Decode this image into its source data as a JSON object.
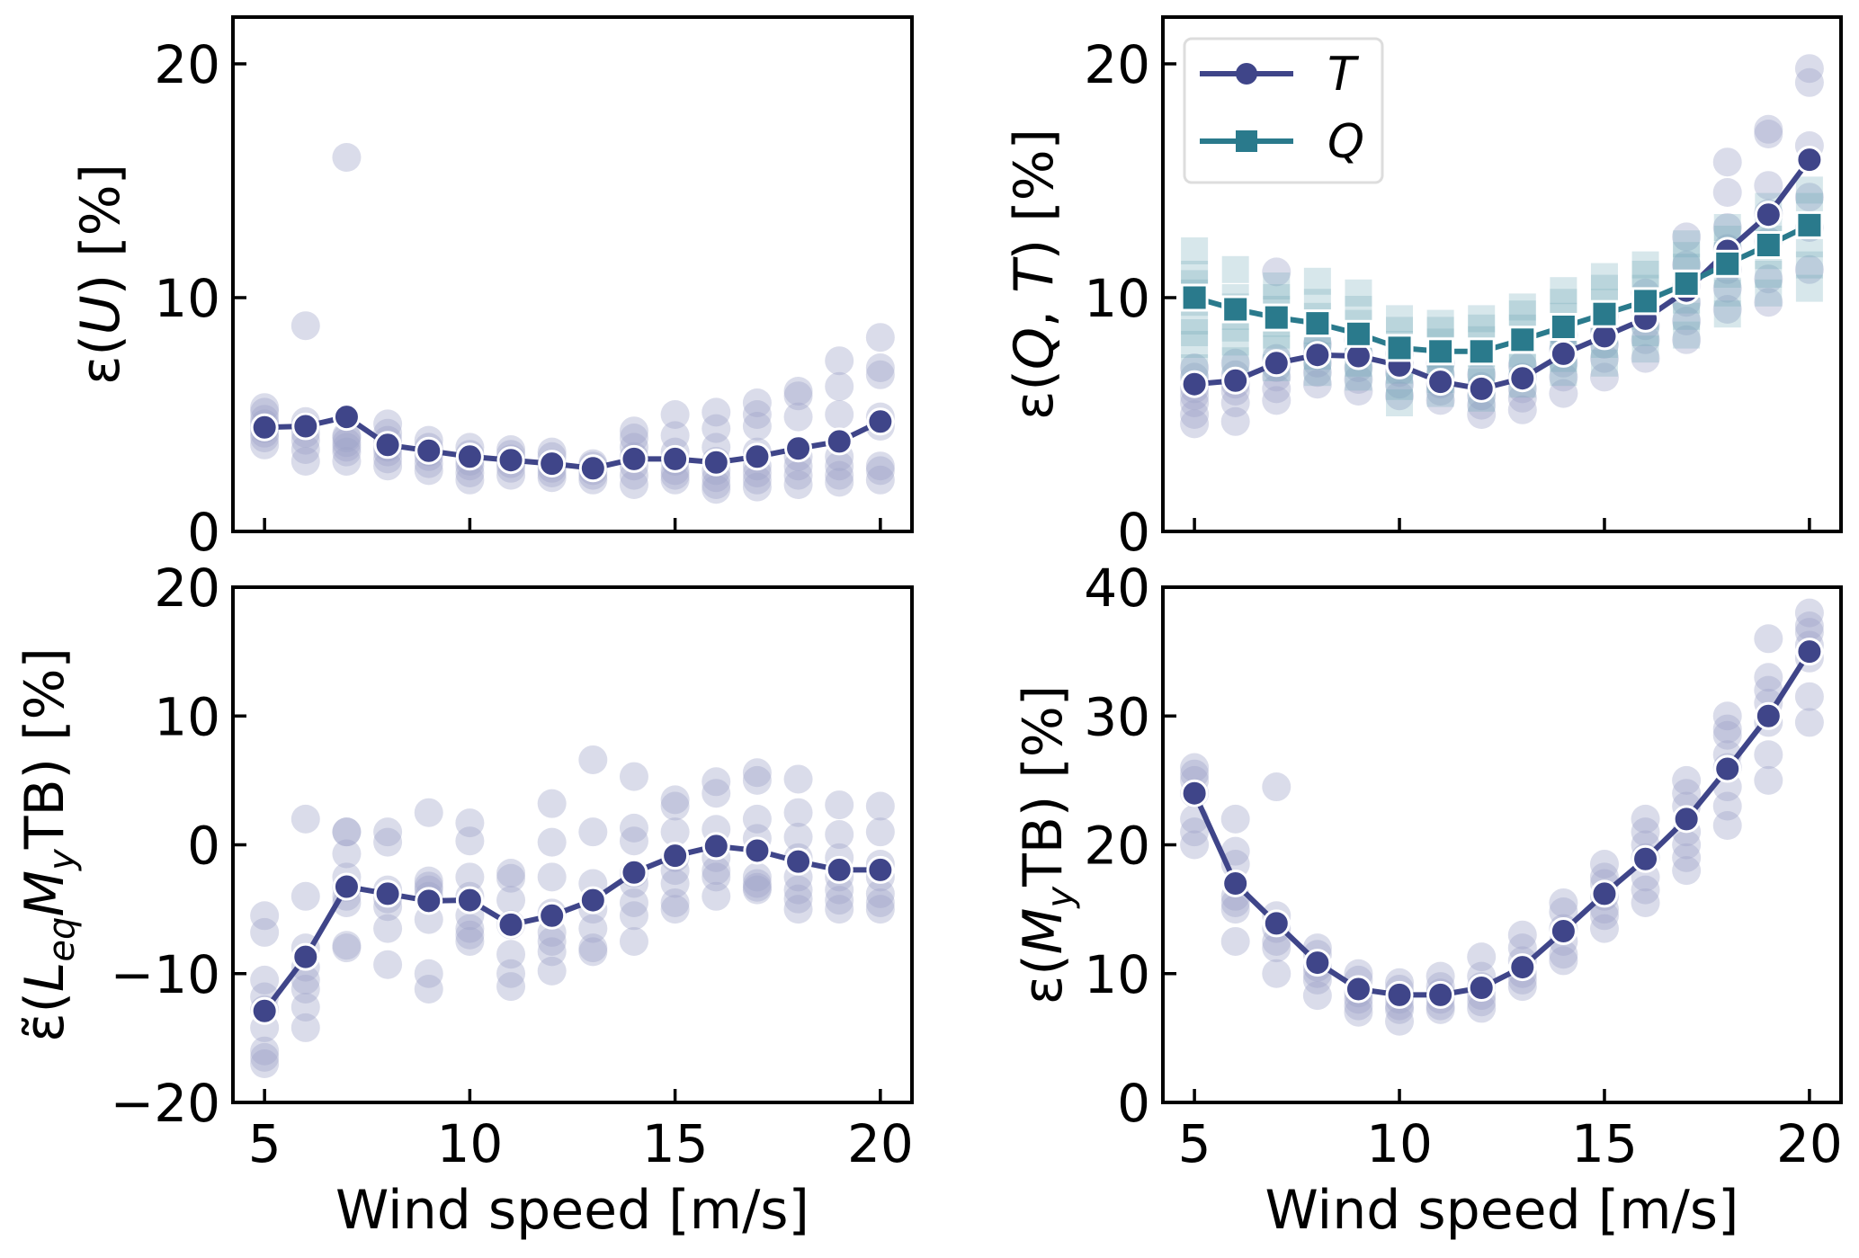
{
  "figure": {
    "colors": {
      "T": "#3f4589",
      "T_scatter": "#9fa3c9",
      "Q": "#2a7a8c",
      "Q_scatter": "#6fa9b6",
      "legend_border": "#dddddd"
    }
  },
  "chart_data": [
    {
      "id": "top-left",
      "type": "line",
      "ylabel": "ε(U) [%]",
      "ylabel_parts": [
        {
          "t": "ε(",
          "s": "normal"
        },
        {
          "t": "U",
          "s": "italic"
        },
        {
          "t": ") [%]",
          "s": "normal"
        }
      ],
      "xlabel": "",
      "xlim": [
        4.23,
        20.77
      ],
      "ylim": [
        0,
        22
      ],
      "xticks": [
        5,
        10,
        15,
        20
      ],
      "xtick_labels_visible": false,
      "yticks": [
        0,
        10,
        20
      ],
      "ytick_labels": [
        "0",
        "10",
        "20"
      ],
      "x": [
        5,
        6,
        7,
        8,
        9,
        10,
        11,
        12,
        13,
        14,
        15,
        16,
        17,
        18,
        19,
        20
      ],
      "series": [
        {
          "name": "U",
          "marker": "circle",
          "color_key": "T",
          "values": [
            4.45,
            4.5,
            4.9,
            3.7,
            3.45,
            3.2,
            3.05,
            2.9,
            2.7,
            3.1,
            3.1,
            2.95,
            3.2,
            3.55,
            3.85,
            4.7
          ],
          "scatter": [
            [
              3.7,
              4.0,
              4.2,
              4.4,
              4.6,
              4.8,
              5.1,
              5.3
            ],
            [
              3.0,
              3.5,
              3.9,
              4.2,
              4.5,
              4.7,
              8.8
            ],
            [
              3.0,
              3.4,
              3.6,
              3.8,
              4.0,
              4.1,
              16.0
            ],
            [
              2.8,
              3.1,
              3.4,
              3.6,
              3.9,
              4.2,
              4.6
            ],
            [
              2.6,
              2.9,
              3.2,
              3.4,
              3.6,
              3.9
            ],
            [
              2.2,
              2.5,
              2.8,
              3.0,
              3.3,
              3.6
            ],
            [
              2.4,
              2.7,
              2.9,
              3.1,
              3.3,
              3.5
            ],
            [
              2.3,
              2.5,
              2.7,
              2.9,
              3.2,
              3.4
            ],
            [
              2.2,
              2.4,
              2.6,
              2.8,
              2.9
            ],
            [
              2.0,
              2.4,
              2.8,
              3.2,
              3.6,
              4.0,
              4.3
            ],
            [
              2.2,
              2.4,
              2.6,
              3.0,
              3.4,
              4.1,
              5.0
            ],
            [
              1.8,
              2.0,
              2.3,
              2.6,
              3.0,
              3.6,
              4.4,
              5.1
            ],
            [
              1.9,
              2.2,
              2.5,
              2.8,
              3.4,
              4.5,
              5.0,
              5.5
            ],
            [
              2.0,
              2.4,
              2.8,
              3.2,
              4.9,
              5.8,
              6.0
            ],
            [
              2.1,
              2.4,
              2.8,
              3.2,
              5.0,
              6.2,
              7.3
            ],
            [
              2.2,
              2.6,
              2.8,
              4.5,
              4.9,
              6.7,
              7.0,
              8.3
            ]
          ]
        }
      ]
    },
    {
      "id": "top-right",
      "type": "line",
      "ylabel": "ε(Q, T) [%]",
      "ylabel_parts": [
        {
          "t": "ε(",
          "s": "normal"
        },
        {
          "t": "Q",
          "s": "italic"
        },
        {
          "t": ",  ",
          "s": "normal"
        },
        {
          "t": "T",
          "s": "italic"
        },
        {
          "t": ") [%]",
          "s": "normal"
        }
      ],
      "xlabel": "",
      "xlim": [
        4.23,
        20.77
      ],
      "ylim": [
        0,
        22
      ],
      "xticks": [
        5,
        10,
        15,
        20
      ],
      "xtick_labels_visible": false,
      "yticks": [
        0,
        10,
        20
      ],
      "ytick_labels": [
        "0",
        "10",
        "20"
      ],
      "legend": {
        "position": "top-left",
        "entries": [
          {
            "label": "T",
            "marker": "circle",
            "color_key": "T"
          },
          {
            "label": "Q",
            "marker": "square",
            "color_key": "Q"
          }
        ]
      },
      "x": [
        5,
        6,
        7,
        8,
        9,
        10,
        11,
        12,
        13,
        14,
        15,
        16,
        17,
        18,
        19,
        20
      ],
      "series": [
        {
          "name": "T",
          "marker": "circle",
          "color_key": "T",
          "values": [
            6.3,
            6.45,
            7.2,
            7.55,
            7.5,
            7.1,
            6.4,
            6.1,
            6.55,
            7.6,
            8.35,
            9.1,
            10.3,
            12.0,
            13.55,
            15.9
          ],
          "scatter": [
            [
              4.6,
              5.0,
              5.5,
              5.8,
              6.1,
              6.6,
              7.0
            ],
            [
              4.7,
              5.5,
              6.0,
              6.3,
              6.7,
              7.2
            ],
            [
              5.6,
              6.1,
              6.6,
              7.0,
              7.4,
              11.1
            ],
            [
              6.3,
              6.8,
              7.2,
              7.6,
              8.0
            ],
            [
              6.0,
              6.5,
              7.0,
              7.6,
              8.2
            ],
            [
              5.8,
              6.3,
              6.8,
              7.2,
              7.6
            ],
            [
              5.6,
              6.0,
              6.3,
              6.7,
              7.2
            ],
            [
              5.0,
              5.4,
              5.8,
              6.2,
              6.7
            ],
            [
              5.2,
              5.7,
              6.1,
              6.6,
              7.1
            ],
            [
              5.9,
              6.6,
              7.2,
              7.8,
              8.4
            ],
            [
              6.6,
              7.4,
              8.0,
              8.6,
              9.2
            ],
            [
              7.4,
              8.2,
              8.8,
              9.4,
              10.2
            ],
            [
              8.2,
              9.0,
              9.8,
              10.5,
              11.4,
              12.6
            ],
            [
              9.5,
              10.4,
              11.2,
              12.1,
              13.0,
              14.5,
              15.8
            ],
            [
              9.8,
              10.8,
              12.4,
              13.6,
              14.8,
              17.0,
              17.2
            ],
            [
              11.2,
              13.0,
              14.3,
              16.5,
              19.2,
              19.8
            ]
          ]
        },
        {
          "name": "Q",
          "marker": "square",
          "color_key": "Q",
          "values": [
            10.0,
            9.5,
            9.15,
            8.9,
            8.45,
            7.85,
            7.7,
            7.7,
            8.2,
            8.75,
            9.3,
            9.85,
            10.6,
            11.45,
            12.25,
            13.1
          ],
          "scatter": [
            [
              7.0,
              8.0,
              8.5,
              9.0,
              9.8,
              10.2,
              10.6,
              11.0,
              12.0
            ],
            [
              7.3,
              8.1,
              8.7,
              9.2,
              9.6,
              10.0,
              11.2
            ],
            [
              7.0,
              7.8,
              8.4,
              8.9,
              9.5,
              10.0,
              10.5
            ],
            [
              6.8,
              7.5,
              8.1,
              8.6,
              9.2,
              9.8,
              10.7
            ],
            [
              6.6,
              7.2,
              7.8,
              8.3,
              8.9,
              9.5,
              10.2
            ],
            [
              5.5,
              6.2,
              6.9,
              7.5,
              8.0,
              8.6,
              9.1
            ],
            [
              5.9,
              6.5,
              7.0,
              7.6,
              8.1,
              8.6,
              8.9
            ],
            [
              5.7,
              6.4,
              7.0,
              7.6,
              8.2,
              8.7,
              9.1
            ],
            [
              6.3,
              7.0,
              7.6,
              8.2,
              8.7,
              9.3,
              9.6
            ],
            [
              6.8,
              7.4,
              8.0,
              8.6,
              9.2,
              9.8,
              10.3
            ],
            [
              7.2,
              8.0,
              8.6,
              9.2,
              9.8,
              10.4,
              10.9
            ],
            [
              7.8,
              8.5,
              9.2,
              9.8,
              10.4,
              11.0,
              11.4
            ],
            [
              8.4,
              9.2,
              9.9,
              10.6,
              11.3,
              11.8,
              12.3
            ],
            [
              9.3,
              10.2,
              11.0,
              11.8,
              12.5,
              13.0
            ],
            [
              10.2,
              11.0,
              11.8,
              12.5,
              13.2,
              13.9
            ],
            [
              10.4,
              11.4,
              12.3,
              13.1,
              13.9,
              14.6
            ]
          ]
        }
      ]
    },
    {
      "id": "bottom-left",
      "type": "line",
      "ylabel": "ε̃(L_eq M_y TB) [%]",
      "ylabel_parts": [
        {
          "t": "ε̃(",
          "s": "normal"
        },
        {
          "t": "L",
          "s": "italic"
        },
        {
          "t": "eq",
          "s": "italic-sub"
        },
        {
          "t": "M",
          "s": "italic"
        },
        {
          "t": "y",
          "s": "italic-sub"
        },
        {
          "t": "TB)  [%]",
          "s": "normal"
        }
      ],
      "xlabel": "Wind speed [m/s]",
      "xlim": [
        4.23,
        20.77
      ],
      "ylim": [
        -20,
        20
      ],
      "xticks": [
        5,
        10,
        15,
        20
      ],
      "xtick_labels": [
        "5",
        "10",
        "15",
        "20"
      ],
      "xtick_labels_visible": true,
      "yticks": [
        -20,
        -10,
        0,
        10,
        20
      ],
      "ytick_labels": [
        "−20",
        "−10",
        "0",
        "10",
        "20"
      ],
      "x": [
        5,
        6,
        7,
        8,
        9,
        10,
        11,
        12,
        13,
        14,
        15,
        16,
        17,
        18,
        19,
        20
      ],
      "series": [
        {
          "name": "Leq My TB",
          "marker": "circle",
          "color_key": "T",
          "values": [
            -12.9,
            -8.7,
            -3.25,
            -3.8,
            -4.35,
            -4.3,
            -6.2,
            -5.5,
            -4.3,
            -2.15,
            -0.85,
            -0.1,
            -0.45,
            -1.3,
            -1.95,
            -1.95
          ],
          "scatter": [
            [
              -5.5,
              -6.8,
              -10.5,
              -11.8,
              -12.8,
              -14.2,
              -16.0,
              -16.5,
              -17.0
            ],
            [
              2.0,
              -4.0,
              -8.0,
              -9.5,
              -10.5,
              -11.2,
              -12.6,
              -14.2
            ],
            [
              1.0,
              1.0,
              -0.7,
              -2.5,
              -3.3,
              -4.0,
              -4.5,
              -7.8,
              -8.0
            ],
            [
              1.0,
              0.2,
              -3.5,
              -4.2,
              -4.8,
              -6.5,
              -9.3
            ],
            [
              2.5,
              -2.8,
              -3.2,
              -3.5,
              -4.0,
              -5.8,
              -10.0,
              -11.2
            ],
            [
              1.7,
              0.3,
              -2.5,
              -4.0,
              -5.5,
              -6.5,
              -7.0,
              -7.5
            ],
            [
              -2.2,
              -2.6,
              -4.3,
              -6.2,
              -8.5,
              -10.0,
              -11.0
            ],
            [
              3.2,
              0.2,
              -2.5,
              -5.3,
              -6.8,
              -7.5,
              -8.3,
              -9.8
            ],
            [
              6.6,
              1.0,
              -3.0,
              -5.0,
              -6.5,
              -8.0,
              -8.3
            ],
            [
              5.3,
              1.3,
              0.3,
              -2.2,
              -3.0,
              -4.5,
              -5.5,
              -7.5
            ],
            [
              3.5,
              3.0,
              1.0,
              -1.0,
              -2.0,
              -3.0,
              -4.5,
              -5.0
            ],
            [
              4.9,
              4.0,
              1.2,
              -1.0,
              -2.0,
              -2.5,
              -4.0
            ],
            [
              5.6,
              5.0,
              2.0,
              0.5,
              -2.5,
              -3.0,
              -3.3,
              -3.5
            ],
            [
              5.1,
              2.5,
              0.6,
              -1.0,
              -2.5,
              -3.5,
              -4.2,
              -5.0
            ],
            [
              3.1,
              0.8,
              -1.0,
              -2.5,
              -3.5,
              -4.3,
              -5.0
            ],
            [
              3.0,
              1.0,
              -1.5,
              -2.5,
              -3.8,
              -4.5,
              -5.0
            ]
          ]
        }
      ]
    },
    {
      "id": "bottom-right",
      "type": "line",
      "ylabel": "ε(M_y TB) [%]",
      "ylabel_parts": [
        {
          "t": "ε(",
          "s": "normal"
        },
        {
          "t": "M",
          "s": "italic"
        },
        {
          "t": "y",
          "s": "italic-sub"
        },
        {
          "t": "TB)  [%]",
          "s": "normal"
        }
      ],
      "xlabel": "Wind speed [m/s]",
      "xlim": [
        4.23,
        20.77
      ],
      "ylim": [
        0,
        40
      ],
      "xticks": [
        5,
        10,
        15,
        20
      ],
      "xtick_labels": [
        "5",
        "10",
        "15",
        "20"
      ],
      "xtick_labels_visible": true,
      "yticks": [
        0,
        10,
        20,
        30,
        40
      ],
      "ytick_labels": [
        "0",
        "10",
        "20",
        "30",
        "40"
      ],
      "x": [
        5,
        6,
        7,
        8,
        9,
        10,
        11,
        12,
        13,
        14,
        15,
        16,
        17,
        18,
        19,
        20
      ],
      "series": [
        {
          "name": "My TB",
          "marker": "circle",
          "color_key": "T",
          "values": [
            24.0,
            17.0,
            13.9,
            10.85,
            8.8,
            8.35,
            8.35,
            8.9,
            10.5,
            13.3,
            16.2,
            18.9,
            22.0,
            25.9,
            30.0,
            35.0
          ],
          "scatter": [
            [
              26.0,
              25.5,
              25.0,
              24.0,
              22.0,
              21.0,
              20.0
            ],
            [
              22.0,
              19.5,
              18.5,
              16.0,
              15.5,
              15.0,
              12.5
            ],
            [
              24.5,
              14.5,
              13.5,
              12.5,
              12.0,
              10.0
            ],
            [
              12.0,
              11.5,
              10.5,
              10.0,
              9.5,
              8.3
            ],
            [
              10.0,
              9.5,
              8.5,
              8.0,
              7.5,
              7.0
            ],
            [
              9.3,
              8.8,
              8.0,
              7.5,
              7.2,
              6.3
            ],
            [
              9.8,
              9.0,
              8.5,
              8.0,
              7.5,
              7.2
            ],
            [
              11.3,
              9.8,
              9.0,
              8.3,
              7.8,
              7.3
            ],
            [
              13.0,
              12.0,
              11.0,
              10.0,
              9.5,
              9.0
            ],
            [
              15.5,
              14.8,
              13.5,
              12.5,
              11.5,
              11.0
            ],
            [
              18.5,
              17.5,
              17.0,
              16.0,
              15.0,
              14.5,
              13.5
            ],
            [
              22.0,
              21.0,
              20.0,
              19.0,
              17.5,
              16.5,
              15.5
            ],
            [
              25.0,
              24.0,
              23.0,
              21.0,
              20.0,
              19.0,
              18.0
            ],
            [
              30.0,
              29.0,
              28.5,
              27.0,
              26.0,
              24.5,
              23.0,
              21.5
            ],
            [
              36.0,
              33.0,
              32.0,
              31.0,
              29.5,
              27.0,
              25.0
            ],
            [
              38.0,
              37.0,
              36.5,
              35.5,
              34.5,
              31.5,
              29.5
            ]
          ]
        }
      ]
    }
  ]
}
